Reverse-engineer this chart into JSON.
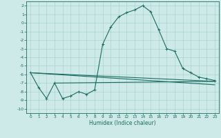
{
  "xlabel": "Humidex (Indice chaleur)",
  "background_color": "#ceeae8",
  "grid_color": "#a8d4d0",
  "line_color": "#1a6b60",
  "xlim": [
    -0.5,
    23.5
  ],
  "ylim": [
    -10.5,
    2.5
  ],
  "xticks": [
    0,
    1,
    2,
    3,
    4,
    5,
    6,
    7,
    8,
    9,
    10,
    11,
    12,
    13,
    14,
    15,
    16,
    17,
    18,
    19,
    20,
    21,
    22,
    23
  ],
  "yticks": [
    2,
    1,
    0,
    -1,
    -2,
    -3,
    -4,
    -5,
    -6,
    -7,
    -8,
    -9,
    -10
  ],
  "main_x": [
    0,
    1,
    2,
    3,
    4,
    5,
    6,
    7,
    8,
    9,
    10,
    11,
    12,
    13,
    14,
    15,
    16,
    17,
    18,
    19,
    20,
    21,
    22,
    23
  ],
  "main_y": [
    -5.8,
    -7.5,
    -8.8,
    -7.0,
    -8.8,
    -8.5,
    -8.0,
    -8.3,
    -7.8,
    -2.5,
    -0.5,
    0.7,
    1.2,
    1.5,
    2.0,
    1.3,
    -0.8,
    -3.0,
    -3.3,
    -5.3,
    -5.8,
    -6.3,
    -6.5,
    -6.7
  ],
  "line1_x": [
    0,
    23
  ],
  "line1_y": [
    -5.8,
    -6.8
  ],
  "line2_x": [
    0,
    23
  ],
  "line2_y": [
    -5.8,
    -7.2
  ],
  "line3_x": [
    3,
    23
  ],
  "line3_y": [
    -7.0,
    -6.8
  ]
}
